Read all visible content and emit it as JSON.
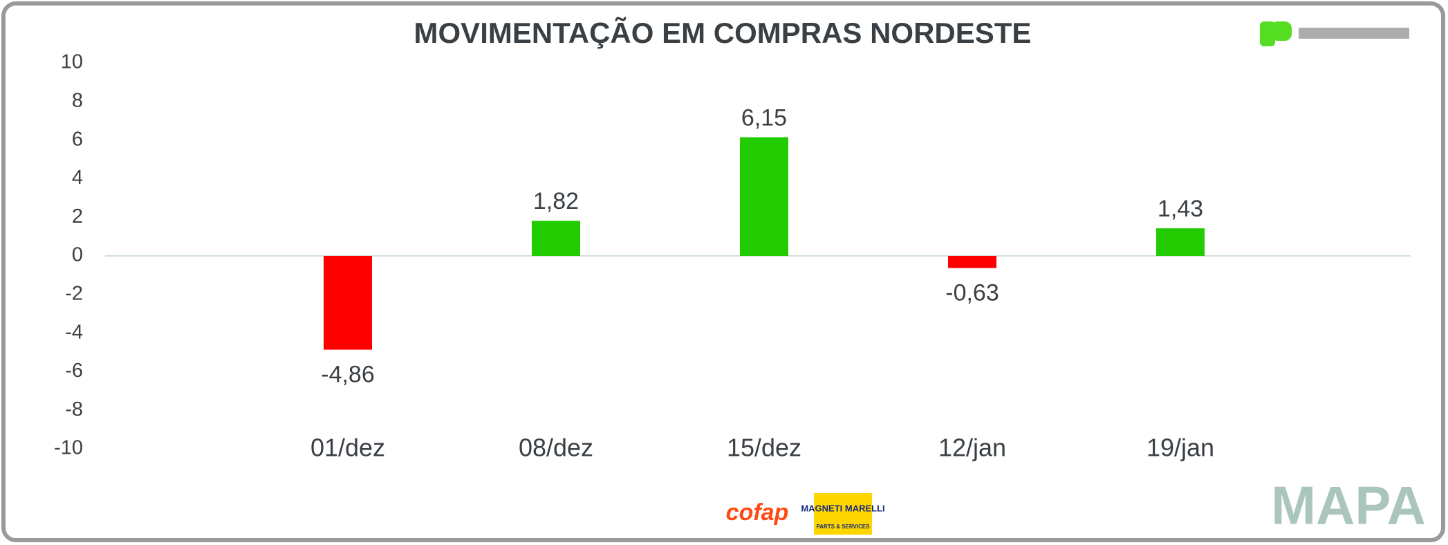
{
  "chart_data": {
    "type": "bar",
    "title": "MOVIMENTAÇÃO EM COMPRAS NORDESTE",
    "categories": [
      "01/dez",
      "08/dez",
      "15/dez",
      "12/jan",
      "19/jan"
    ],
    "values": [
      -4.86,
      1.82,
      6.15,
      -0.63,
      1.43
    ],
    "value_labels": [
      "-4,86",
      "1,82",
      "6,15",
      "-0,63",
      "1,43"
    ],
    "colors": [
      "#ff0000",
      "#22cc00",
      "#22cc00",
      "#ff0000",
      "#22cc00"
    ],
    "ylim": [
      -10,
      10
    ],
    "yticks": [
      -10,
      -8,
      -6,
      -4,
      -2,
      0,
      2,
      4,
      6,
      8,
      10
    ]
  },
  "logos": {
    "cofap": "cofap",
    "magneti": "MAGNETI MARELLI",
    "magneti_sub": "PARTS & SERVICES",
    "mapa": "MAPA"
  }
}
